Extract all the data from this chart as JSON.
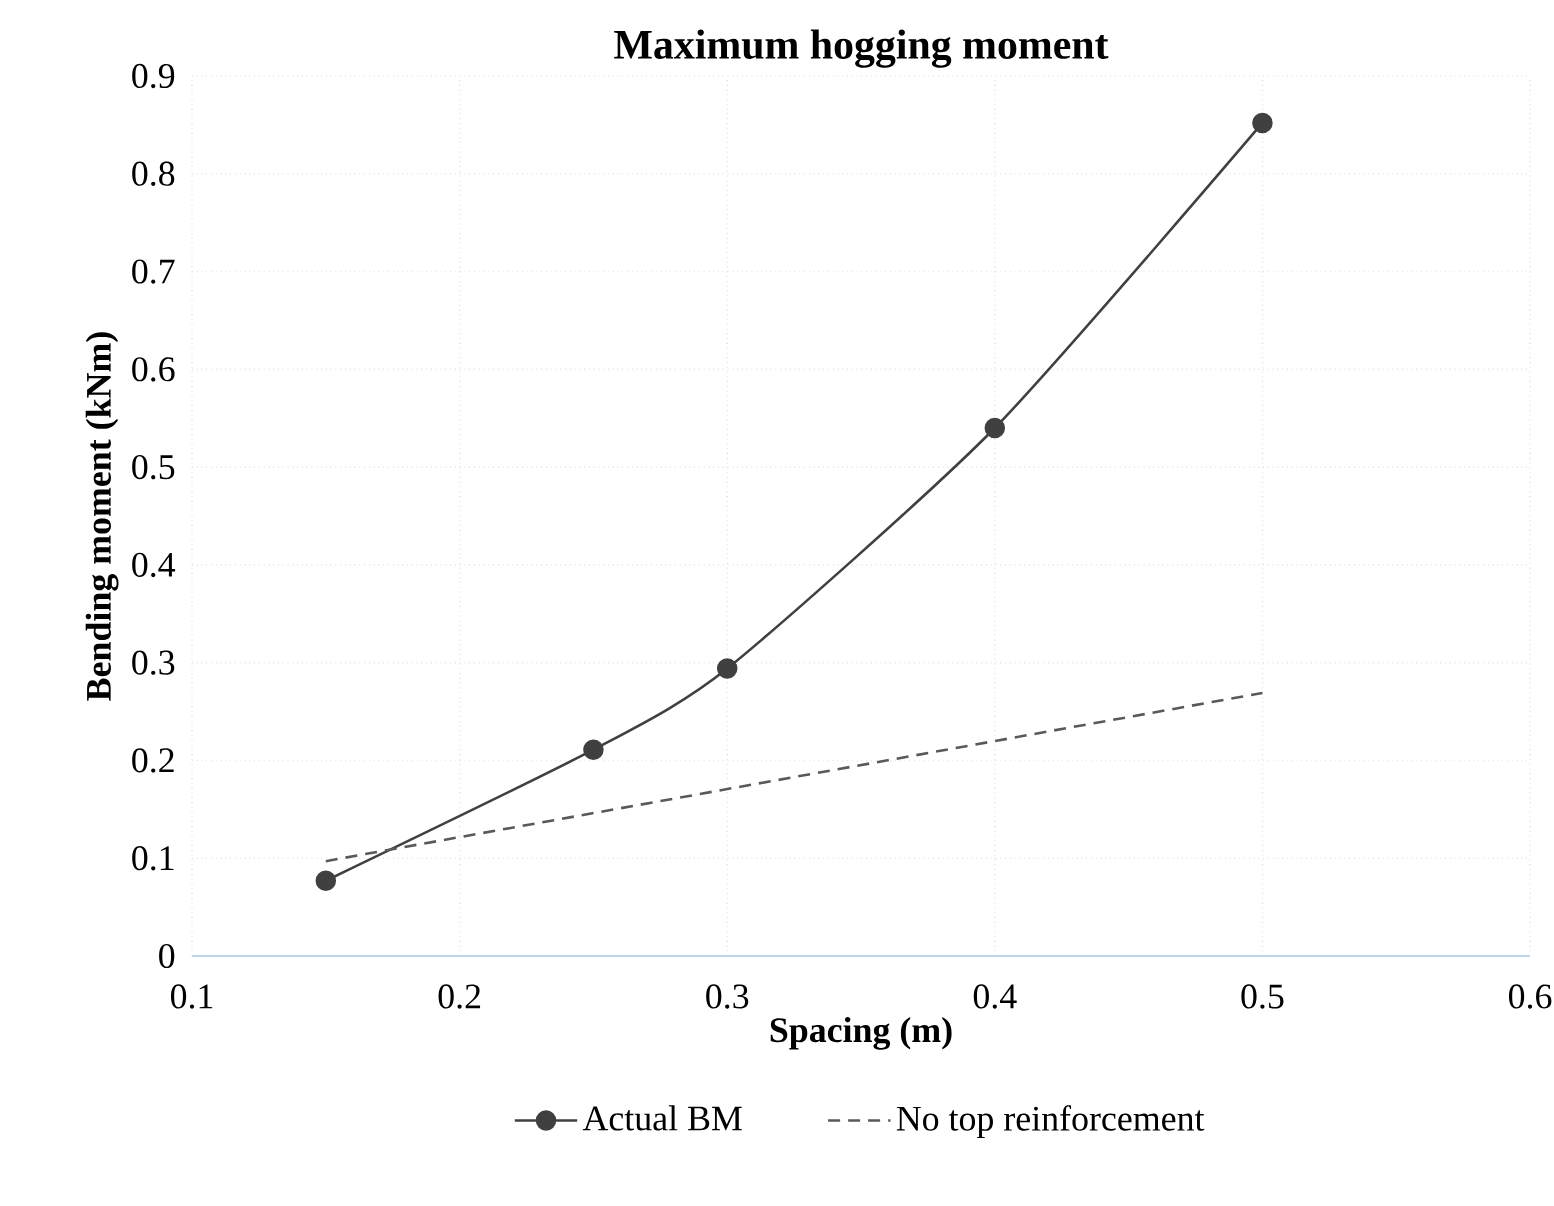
{
  "chart_data": {
    "type": "line",
    "title": "Maximum hogging moment",
    "xlabel": "Spacing (m)",
    "ylabel": "Bending moment  (kNm)",
    "x": [
      0.15,
      0.25,
      0.3,
      0.4,
      0.5
    ],
    "series": [
      {
        "name": "Actual BM",
        "color": "#404040",
        "values": [
          0.077,
          0.211,
          0.294,
          0.54,
          0.852
        ],
        "marker": "circle",
        "line_style": "solid"
      },
      {
        "name": "No top reinforcement",
        "color": "#595959",
        "x": [
          0.15,
          0.5
        ],
        "values": [
          0.097,
          0.269
        ],
        "marker": "none",
        "line_style": "dashed"
      }
    ],
    "xlim": [
      0.1,
      0.6
    ],
    "xticks": [
      0.1,
      0.2,
      0.3,
      0.4,
      0.5,
      0.6
    ],
    "ylim": [
      0,
      0.9
    ],
    "yticks": [
      0,
      0.1,
      0.2,
      0.3,
      0.4,
      0.5,
      0.6,
      0.7,
      0.8,
      0.9
    ],
    "grid": true,
    "legend": "bottom"
  }
}
